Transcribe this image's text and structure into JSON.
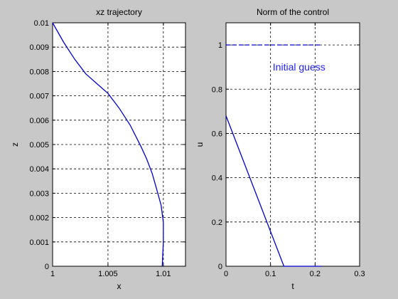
{
  "chart_data": [
    {
      "type": "line",
      "title": "xz trajectory",
      "xlabel": "x",
      "ylabel": "z",
      "xlim": [
        1,
        1.012
      ],
      "ylim": [
        0,
        0.01
      ],
      "xticks": [
        1,
        1.005,
        1.01
      ],
      "xtick_labels": [
        "1",
        "1.005",
        "1.01"
      ],
      "yticks": [
        0,
        0.001,
        0.002,
        0.003,
        0.004,
        0.005,
        0.006,
        0.007,
        0.008,
        0.009,
        0.01
      ],
      "ytick_labels": [
        "0",
        "0.001",
        "0.002",
        "0.003",
        "0.004",
        "0.005",
        "0.006",
        "0.007",
        "0.008",
        "0.009",
        "0.01"
      ],
      "grid": true,
      "line_color": "#0000cc",
      "series": [
        {
          "x": [
            1.0,
            1.001,
            1.002,
            1.003,
            1.004,
            1.005,
            1.006,
            1.007,
            1.008,
            1.0085,
            1.009,
            1.0095,
            1.0098,
            1.01,
            1.01,
            1.0099
          ],
          "y": [
            0.01,
            0.0092,
            0.0085,
            0.0079,
            0.0075,
            0.0071,
            0.0065,
            0.0058,
            0.0049,
            0.0044,
            0.0038,
            0.003,
            0.0025,
            0.0018,
            0.001,
            0.0
          ]
        }
      ]
    },
    {
      "type": "line",
      "title": "Norm of the control",
      "xlabel": "t",
      "ylabel": "u",
      "xlim": [
        0,
        0.3
      ],
      "ylim": [
        0,
        1.1
      ],
      "xticks": [
        0,
        0.1,
        0.2,
        0.3
      ],
      "xtick_labels": [
        "0",
        "0.1",
        "0.2",
        "0.3"
      ],
      "yticks": [
        0,
        0.2,
        0.4,
        0.6,
        0.8,
        1
      ],
      "ytick_labels": [
        "0",
        "0.2",
        "0.4",
        "0.6",
        "0.8",
        "1"
      ],
      "grid": true,
      "line_color": "#0000cc",
      "series": [
        {
          "style": "dashed",
          "x": [
            0,
            0.215
          ],
          "y": [
            1,
            1
          ]
        },
        {
          "style": "solid",
          "x": [
            0,
            0.13,
            0.133,
            0.215
          ],
          "y": [
            0.68,
            0.0,
            0.0,
            0.0
          ]
        }
      ],
      "annotations": [
        {
          "text": "Initial guess",
          "x": 0.105,
          "y": 0.885
        }
      ],
      "annotation_color": "#2020ff"
    }
  ]
}
